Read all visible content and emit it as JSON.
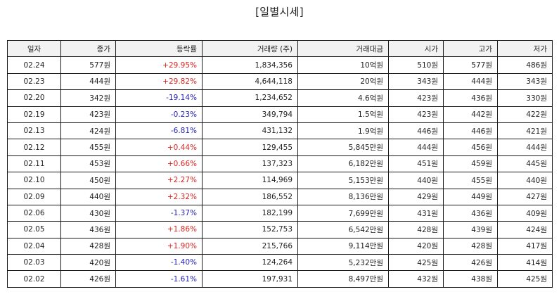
{
  "title": "[일별시세]",
  "headers": [
    "일자",
    "종가",
    "등락률",
    "거래량 (주)",
    "거래대금",
    "시가",
    "고가",
    "저가"
  ],
  "colors": {
    "up": "#e0231d",
    "down": "#2323b8"
  },
  "rows": [
    {
      "date": "02.24",
      "close": "577원",
      "change": "+29.95%",
      "dir": "up",
      "volume": "1,834,356",
      "amount": "10억원",
      "open": "510원",
      "high": "577원",
      "low": "486원"
    },
    {
      "date": "02.23",
      "close": "444원",
      "change": "+29.82%",
      "dir": "up",
      "volume": "4,644,118",
      "amount": "20억원",
      "open": "343원",
      "high": "444원",
      "low": "343원"
    },
    {
      "date": "02.20",
      "close": "342원",
      "change": "-19.14%",
      "dir": "down",
      "volume": "1,234,652",
      "amount": "4.6억원",
      "open": "423원",
      "high": "436원",
      "low": "330원"
    },
    {
      "date": "02.19",
      "close": "423원",
      "change": "-0.23%",
      "dir": "down",
      "volume": "349,794",
      "amount": "1.5억원",
      "open": "423원",
      "high": "442원",
      "low": "422원"
    },
    {
      "date": "02.13",
      "close": "424원",
      "change": "-6.81%",
      "dir": "down",
      "volume": "431,132",
      "amount": "1.9억원",
      "open": "446원",
      "high": "446원",
      "low": "421원"
    },
    {
      "date": "02.12",
      "close": "455원",
      "change": "+0.44%",
      "dir": "up",
      "volume": "129,455",
      "amount": "5,845만원",
      "open": "444원",
      "high": "456원",
      "low": "444원"
    },
    {
      "date": "02.11",
      "close": "453원",
      "change": "+0.66%",
      "dir": "up",
      "volume": "137,323",
      "amount": "6,182만원",
      "open": "451원",
      "high": "459원",
      "low": "445원"
    },
    {
      "date": "02.10",
      "close": "450원",
      "change": "+2.27%",
      "dir": "up",
      "volume": "114,969",
      "amount": "5,153만원",
      "open": "440원",
      "high": "455원",
      "low": "440원"
    },
    {
      "date": "02.09",
      "close": "440원",
      "change": "+2.32%",
      "dir": "up",
      "volume": "186,552",
      "amount": "8,136만원",
      "open": "429원",
      "high": "449원",
      "low": "427원"
    },
    {
      "date": "02.06",
      "close": "430원",
      "change": "-1.37%",
      "dir": "down",
      "volume": "182,199",
      "amount": "7,699만원",
      "open": "431원",
      "high": "436원",
      "low": "409원"
    },
    {
      "date": "02.05",
      "close": "436원",
      "change": "+1.86%",
      "dir": "up",
      "volume": "152,753",
      "amount": "6,542만원",
      "open": "428원",
      "high": "439원",
      "low": "424원"
    },
    {
      "date": "02.04",
      "close": "428원",
      "change": "+1.90%",
      "dir": "up",
      "volume": "215,766",
      "amount": "9,114만원",
      "open": "420원",
      "high": "428원",
      "low": "417원"
    },
    {
      "date": "02.03",
      "close": "420원",
      "change": "-1.40%",
      "dir": "down",
      "volume": "124,264",
      "amount": "5,232만원",
      "open": "425원",
      "high": "426원",
      "low": "414원"
    },
    {
      "date": "02.02",
      "close": "426원",
      "change": "-1.61%",
      "dir": "down",
      "volume": "197,931",
      "amount": "8,497만원",
      "open": "432원",
      "high": "438원",
      "low": "425원"
    }
  ]
}
